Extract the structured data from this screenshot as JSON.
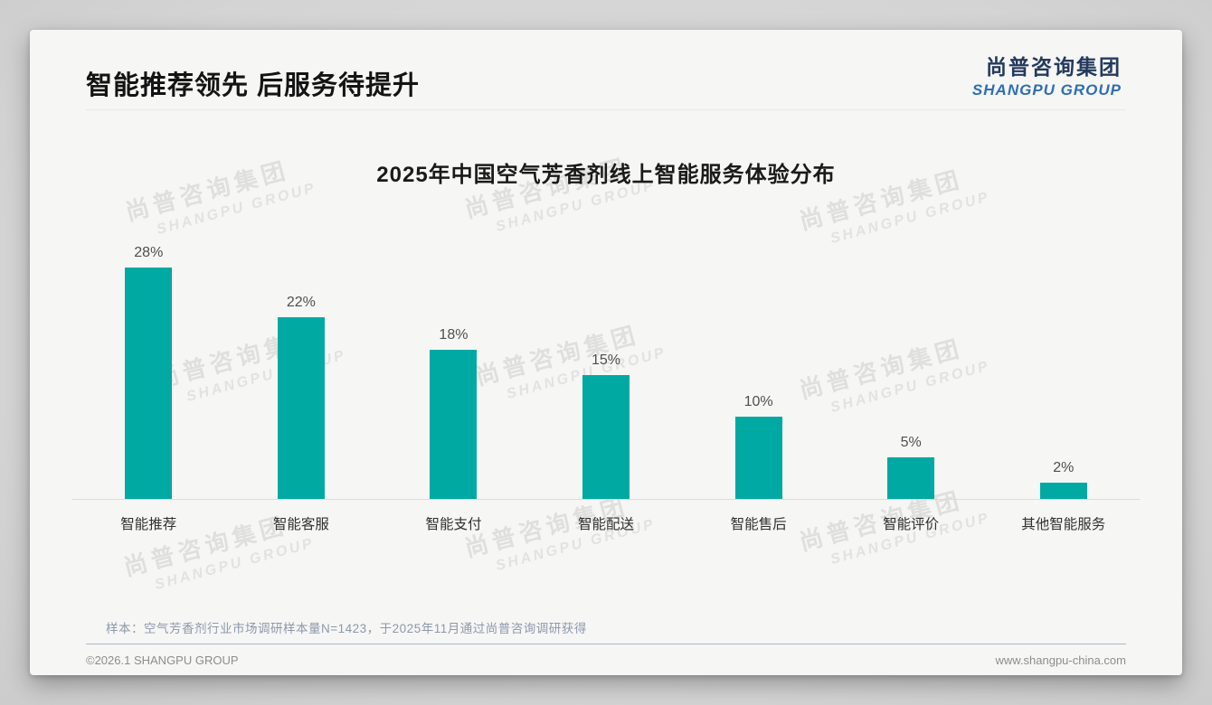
{
  "header": {
    "title": "智能推荐领先 后服务待提升"
  },
  "logo": {
    "cn": "尚普咨询集团",
    "en": "SHANGPU GROUP",
    "cn_color": "#243A5E",
    "en_color": "#2F6EB3"
  },
  "watermark": {
    "line1": "尚普咨询集团",
    "line2": "SHANGPU GROUP"
  },
  "chart_data": {
    "type": "bar",
    "title": "2025年中国空气芳香剂线上智能服务体验分布",
    "categories": [
      "智能推荐",
      "智能客服",
      "智能支付",
      "智能配送",
      "智能售后",
      "智能评价",
      "其他智能服务"
    ],
    "values": [
      28,
      22,
      18,
      15,
      10,
      5,
      2
    ],
    "data_labels": [
      "28%",
      "22%",
      "18%",
      "15%",
      "10%",
      "5%",
      "2%"
    ],
    "unit": "%",
    "xlabel": "",
    "ylabel": "",
    "ylim": [
      0,
      30
    ],
    "grid": false,
    "legend": "none",
    "bar_color": "#00A9A2",
    "value_label_color": "#4f4f4f",
    "category_label_color": "#303030"
  },
  "note": {
    "text": "样本：空气芳香剂行业市场调研样本量N=1423，于2025年11月通过尚普咨询调研获得"
  },
  "footer": {
    "copyright": "©2026.1 SHANGPU GROUP",
    "website": "www.shangpu-china.com"
  }
}
